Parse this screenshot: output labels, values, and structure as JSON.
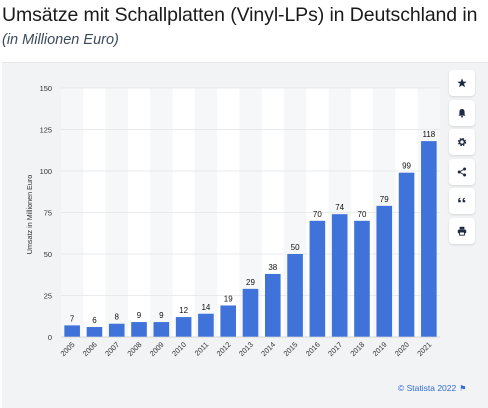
{
  "header": {
    "title": "Umsätze mit Schallplatten (Vinyl-LPs) in Deutschland in",
    "subtitle": "(in Millionen Euro)"
  },
  "toolbar": {
    "buttons": [
      {
        "icon": "star-icon"
      },
      {
        "icon": "bell-icon"
      },
      {
        "icon": "gear-icon"
      },
      {
        "icon": "share-icon"
      },
      {
        "icon": "quote-icon"
      },
      {
        "icon": "print-icon"
      }
    ]
  },
  "footer": {
    "credit": "© Statista 2022"
  },
  "chart_data": {
    "type": "bar",
    "categories": [
      "2005",
      "2006",
      "2007",
      "2008",
      "2009",
      "2010",
      "2011",
      "2012",
      "2013",
      "2014",
      "2015",
      "2016",
      "2017",
      "2018",
      "2019",
      "2020",
      "2021"
    ],
    "values": [
      7,
      6,
      8,
      9,
      9,
      12,
      14,
      19,
      29,
      38,
      50,
      70,
      74,
      70,
      79,
      99,
      118
    ],
    "ylabel": "Umsatz in Millionen Euro",
    "ylim": [
      0,
      150
    ],
    "yticks": [
      0,
      25,
      50,
      75,
      100,
      125,
      150
    ],
    "bar_color": "#3f73d9",
    "grid": true,
    "legend": "none"
  }
}
